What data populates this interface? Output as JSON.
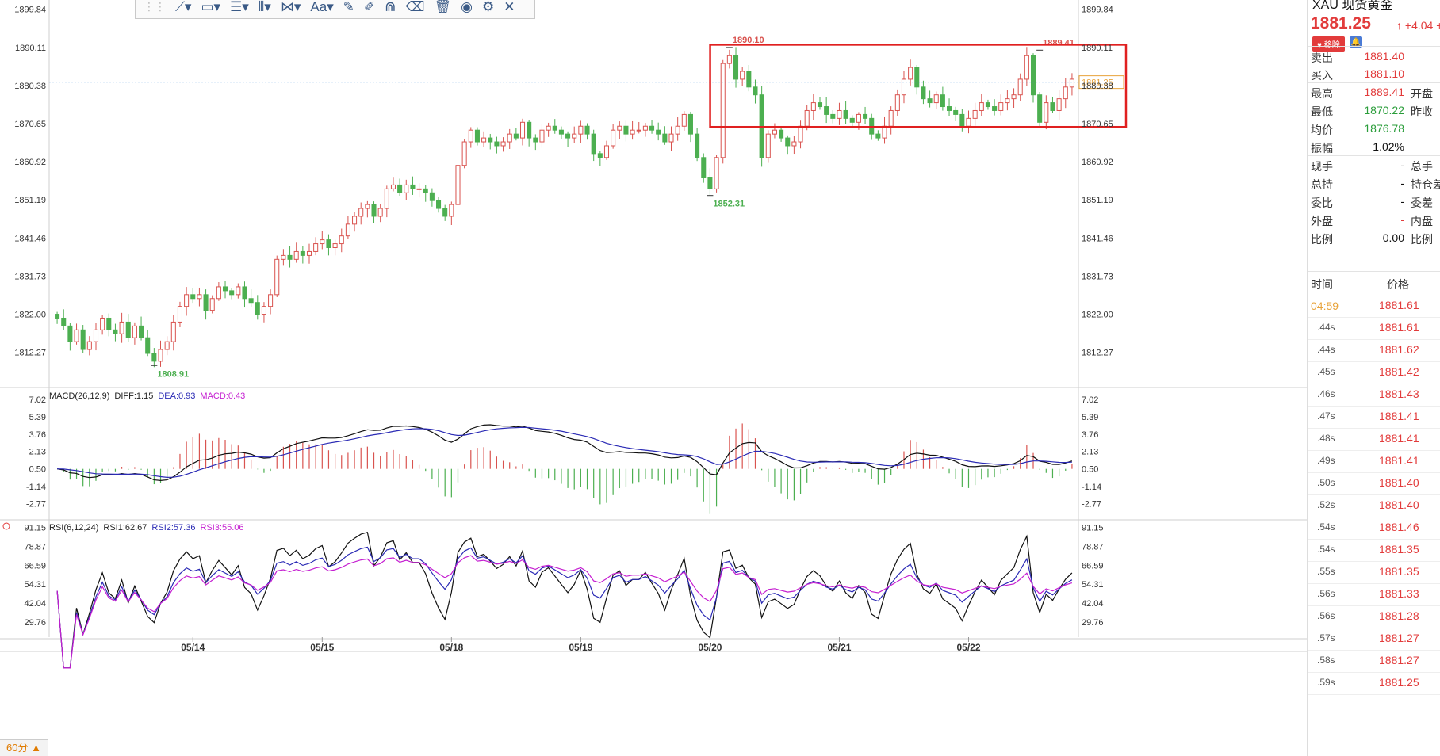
{
  "toolbar": {
    "tools": [
      "line-tool",
      "shape-tool",
      "fib-tool",
      "parallel-tool",
      "pattern-tool",
      "text-tool",
      "pencil-tool",
      "brush-tool",
      "magnet-tool",
      "eraser-tool",
      "trash-tool",
      "eye-tool",
      "gear-tool",
      "close-tool"
    ],
    "text_tool_label": "Aa"
  },
  "panel": {
    "title": "XAU 现货黄金",
    "price": "1881.25",
    "change": "+4.04 +0.",
    "badge_remove": "移除",
    "rows": [
      {
        "k": "卖出",
        "v": "1881.40",
        "vc": "red",
        "k2": ""
      },
      {
        "k": "买入",
        "v": "1881.10",
        "vc": "red",
        "k2": ""
      },
      {
        "k": "最高",
        "v": "1889.41",
        "vc": "red",
        "k2": "开盘"
      },
      {
        "k": "最低",
        "v": "1870.22",
        "vc": "green",
        "k2": "昨收"
      },
      {
        "k": "均价",
        "v": "1876.78",
        "vc": "green",
        "k2": ""
      },
      {
        "k": "振幅",
        "v": "1.02%",
        "vc": "blk",
        "k2": ""
      },
      {
        "k": "现手",
        "v": "-",
        "vc": "blk",
        "k2": "总手"
      },
      {
        "k": "总持",
        "v": "-",
        "vc": "blk",
        "k2": "持仓差"
      },
      {
        "k": "委比",
        "v": "-",
        "vc": "blk",
        "k2": "委差"
      },
      {
        "k": "外盘",
        "v": "-",
        "vc": "red",
        "k2": "内盘"
      },
      {
        "k": "比例",
        "v": "0.00",
        "vc": "blk",
        "k2": "比例"
      }
    ],
    "ticks_header": {
      "time": "时间",
      "price": "价格"
    },
    "ticks": [
      {
        "t": "04:59",
        "p": "1881.61"
      },
      {
        "t": ".44s",
        "p": "1881.61"
      },
      {
        "t": ".44s",
        "p": "1881.62"
      },
      {
        "t": ".45s",
        "p": "1881.42"
      },
      {
        "t": ".46s",
        "p": "1881.43"
      },
      {
        "t": ".47s",
        "p": "1881.41"
      },
      {
        "t": ".48s",
        "p": "1881.41"
      },
      {
        "t": ".49s",
        "p": "1881.41"
      },
      {
        "t": ".50s",
        "p": "1881.40"
      },
      {
        "t": ".52s",
        "p": "1881.40"
      },
      {
        "t": ".54s",
        "p": "1881.46"
      },
      {
        "t": ".54s",
        "p": "1881.35"
      },
      {
        "t": ".55s",
        "p": "1881.35"
      },
      {
        "t": ".56s",
        "p": "1881.33"
      },
      {
        "t": ".56s",
        "p": "1881.28"
      },
      {
        "t": ".57s",
        "p": "1881.27"
      },
      {
        "t": ".58s",
        "p": "1881.27"
      },
      {
        "t": ".59s",
        "p": "1881.25"
      }
    ]
  },
  "bottom_tab": "60分 ▲",
  "chart_data": {
    "type": "candlestick",
    "price_axis": {
      "ticks": [
        "1899.84",
        "1890.11",
        "1880.38",
        "1870.65",
        "1860.92",
        "1851.19",
        "1841.46",
        "1831.73",
        "1822.00",
        "1812.27"
      ],
      "range": [
        1803.5,
        1901
      ]
    },
    "current_price": 1881.25,
    "current_price_label": "1881.25",
    "annotations": [
      {
        "text": "1890.10",
        "price": 1890.1,
        "color": "red"
      },
      {
        "text": "1889.41",
        "price": 1889.41,
        "color": "red"
      },
      {
        "text": "1852.31",
        "price": 1852.31,
        "color": "green"
      },
      {
        "text": "1808.91",
        "price": 1808.91,
        "color": "green"
      }
    ],
    "date_labels": [
      "05/14",
      "05/15",
      "05/18",
      "05/19",
      "05/20",
      "05/21",
      "05/22"
    ],
    "closes": [
      1821,
      1819,
      1815,
      1818,
      1813,
      1815,
      1818,
      1821,
      1818,
      1817,
      1820,
      1816,
      1819,
      1816,
      1812,
      1810,
      1813,
      1815,
      1820,
      1824,
      1827,
      1826,
      1827,
      1823,
      1826,
      1829,
      1828,
      1827,
      1829,
      1826,
      1825,
      1822,
      1824,
      1827,
      1836,
      1837,
      1836,
      1838,
      1837,
      1838,
      1840,
      1841,
      1839,
      1840,
      1842,
      1845,
      1847,
      1849,
      1850,
      1847,
      1849,
      1854,
      1855,
      1853,
      1855,
      1854,
      1854,
      1853,
      1851,
      1849,
      1847,
      1850,
      1860,
      1866,
      1869,
      1866,
      1867,
      1866,
      1865,
      1866,
      1868,
      1867,
      1871,
      1867,
      1866,
      1869,
      1870,
      1869,
      1868,
      1867,
      1868,
      1870,
      1868,
      1863,
      1862,
      1865,
      1869,
      1870,
      1868,
      1869,
      1869,
      1870,
      1869,
      1868,
      1866,
      1868,
      1870,
      1873,
      1868,
      1862,
      1857,
      1854,
      1862,
      1886,
      1888,
      1882,
      1884,
      1880,
      1878,
      1862,
      1868,
      1869,
      1867,
      1865,
      1866,
      1870,
      1874,
      1876,
      1875,
      1873,
      1872,
      1874,
      1872,
      1871,
      1873,
      1872,
      1868,
      1867,
      1870,
      1874,
      1878,
      1882,
      1885,
      1880,
      1877,
      1876,
      1878,
      1875,
      1874,
      1873,
      1870,
      1872,
      1874,
      1876,
      1875,
      1874,
      1876,
      1877,
      1878,
      1882,
      1888,
      1878,
      1871,
      1876,
      1874,
      1877,
      1880,
      1882
    ],
    "macd": {
      "params": "MACD(26,12,9)",
      "diff_label": "DIFF:1.15",
      "dea_label": "DEA:0.93",
      "macd_label": "MACD:0.43",
      "ticks": [
        "7.02",
        "5.39",
        "3.76",
        "2.13",
        "0.50",
        "-1.14",
        "-2.77"
      ],
      "range": [
        -4.2,
        7.9
      ]
    },
    "rsi": {
      "params": "RSI(6,12,24)",
      "rsi1_label": "RSI1:62.67",
      "rsi2_label": "RSI2:57.36",
      "rsi3_label": "RSI3:55.06",
      "ticks": [
        "91.15",
        "78.87",
        "66.59",
        "54.31",
        "42.04",
        "29.76"
      ],
      "range": [
        20,
        95
      ]
    },
    "colors": {
      "up": "#d9534f",
      "down": "#4caf50",
      "diff": "#111111",
      "dea": "#2b2bb5",
      "macd": "#c51fd1",
      "rsi1": "#111111",
      "rsi2": "#2b2bb5",
      "rsi3": "#c51fd1",
      "box": "#e02020"
    }
  }
}
